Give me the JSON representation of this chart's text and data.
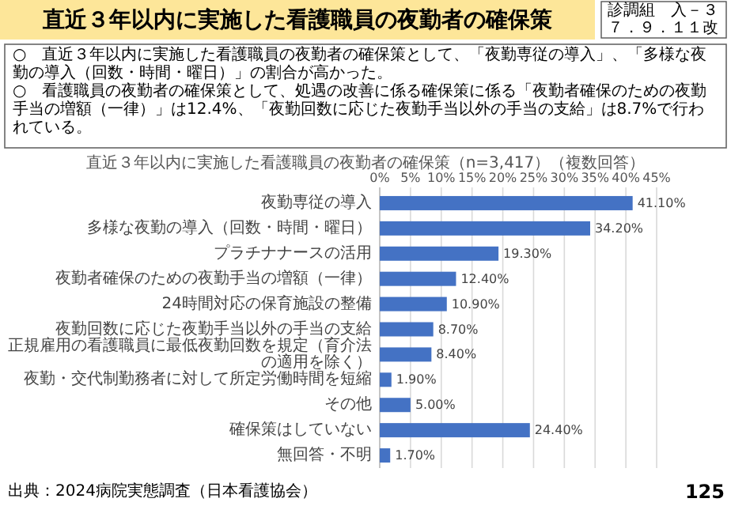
{
  "chart_data": {
    "type": "bar",
    "orientation": "horizontal",
    "grid": "x",
    "color": "#4472c4",
    "title": "直近３年以内に実施した看護職員の夜勤者の確保策",
    "subtitle": "直近３年以内に実施した看護職員の夜勤者の確保策（n=3,417）（複数回答）",
    "annotations": [
      "診調組　入－３",
      "７．９．１１改",
      "○　直近３年以内に実施した看護職員の夜勤者の確保策として、「夜勤専従の導入」、「多様な夜勤の導入（回数・時間・曜日）」の割合が高かった。",
      "○　看護職員の夜勤者の確保策として、処遇の改善に係る確保策に係る「夜勤者確保のための夜勤手当の増額（一律）」は12.4%、「夜勤回数に応じた夜勤手当以外の手当の支給」は8.7%で行われている。",
      "出典：2024病院実態調査（日本看護協会）",
      "125"
    ],
    "categories": [
      "夜勤専従の導入",
      "多様な夜勤の導入（回数・時間・曜日）",
      "プラチナナースの活用",
      "夜勤者確保のための夜勤手当の増額（一律）",
      "24時間対応の保育施設の整備",
      "夜勤回数に応じた夜勤手当以外の手当の支給",
      "正規雇用の看護職員に最低夜勤回数を規定（育介法の適用を除く）",
      "夜勤・交代制勤務者に対して所定労働時間を短縮",
      "その他",
      "確保策はしていない",
      "無回答・不明"
    ],
    "values": [
      41.1,
      34.2,
      19.3,
      12.4,
      10.9,
      8.7,
      8.4,
      1.9,
      5.0,
      24.4,
      1.7
    ],
    "value_labels": [
      "41.10%",
      "34.20%",
      "19.30%",
      "12.40%",
      "10.90%",
      "8.70%",
      "8.40%",
      "1.90%",
      "5.00%",
      "24.40%",
      "1.70%"
    ],
    "xlim": [
      0,
      45
    ],
    "xticks": [
      {
        "value": 0,
        "label": "0%"
      },
      {
        "value": 5,
        "label": "5%"
      },
      {
        "value": 10,
        "label": "10%"
      },
      {
        "value": 15,
        "label": "15%"
      },
      {
        "value": 20,
        "label": "20%"
      },
      {
        "value": 25,
        "label": "25%"
      },
      {
        "value": 30,
        "label": "30%"
      },
      {
        "value": 35,
        "label": "35%"
      },
      {
        "value": 40,
        "label": "40%"
      },
      {
        "value": 45,
        "label": "45%"
      }
    ]
  }
}
